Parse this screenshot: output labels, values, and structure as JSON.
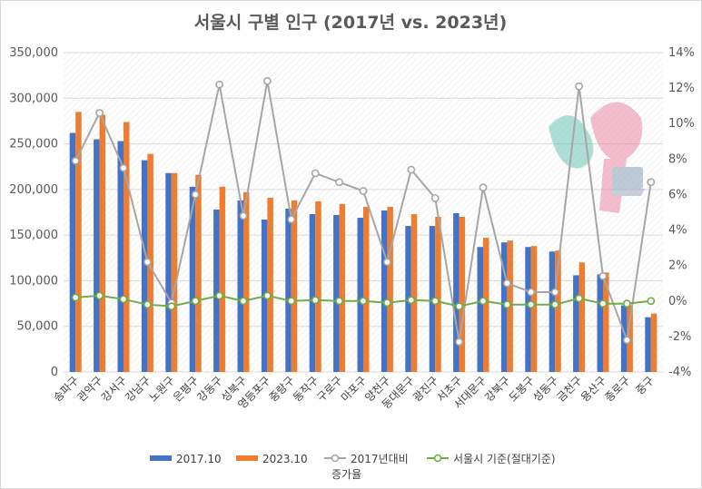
{
  "chart_data": {
    "type": "bar",
    "title": "서울시 구별 인구 (2017년 vs. 2023년)",
    "categories": [
      "송파구",
      "관악구",
      "강서구",
      "강남구",
      "노원구",
      "은평구",
      "강동구",
      "성북구",
      "영등포구",
      "중랑구",
      "동작구",
      "구로구",
      "마포구",
      "양천구",
      "동대문구",
      "광진구",
      "서초구",
      "서대문구",
      "강북구",
      "도봉구",
      "성동구",
      "금천구",
      "용산구",
      "종로구",
      "중구"
    ],
    "series": [
      {
        "name": "2017.10",
        "axis": "left",
        "kind": "bar",
        "color": "#4472c4",
        "values": [
          262000,
          255000,
          253000,
          232000,
          218000,
          203000,
          178000,
          188000,
          167000,
          179000,
          173000,
          172000,
          169000,
          177000,
          160000,
          160000,
          174000,
          137000,
          142000,
          137000,
          132000,
          106000,
          107000,
          73000,
          60000
        ]
      },
      {
        "name": "2023.10",
        "axis": "right_pct",
        "kind": "bar",
        "color": "#ed7d31",
        "values": [
          285000,
          282000,
          274000,
          239000,
          218000,
          216000,
          203000,
          197000,
          191000,
          188000,
          187000,
          184000,
          181000,
          181000,
          173000,
          170000,
          170000,
          147000,
          144000,
          138000,
          133000,
          120000,
          109000,
          73000,
          64000
        ]
      },
      {
        "name": "2017년대비 증가율",
        "axis": "right",
        "kind": "line",
        "color": "#a6a6a6",
        "values": [
          7.9,
          10.6,
          7.5,
          2.2,
          -0.1,
          6.0,
          12.2,
          4.8,
          12.4,
          4.6,
          7.2,
          6.7,
          6.2,
          2.2,
          7.4,
          5.8,
          -2.3,
          6.4,
          1.0,
          0.5,
          0.5,
          12.1,
          1.4,
          -2.2,
          6.7
        ]
      },
      {
        "name": "서울시 기준(절대기준)",
        "axis": "right",
        "kind": "line",
        "color": "#70ad47",
        "values": [
          0.2,
          0.3,
          0.1,
          -0.2,
          -0.3,
          0.0,
          0.3,
          0.0,
          0.3,
          0.0,
          0.05,
          0.0,
          0.0,
          -0.1,
          0.05,
          0.0,
          -0.3,
          0.0,
          -0.2,
          -0.2,
          -0.2,
          0.15,
          -0.15,
          -0.15,
          0.0
        ]
      }
    ],
    "left_axis": {
      "min": 0,
      "max": 350000,
      "step": 50000,
      "tick_labels": [
        "0",
        "50,000",
        "100,000",
        "150,000",
        "200,000",
        "250,000",
        "300,000",
        "350,000"
      ]
    },
    "right_axis": {
      "min": -4,
      "max": 14,
      "step": 2,
      "tick_labels": [
        "-4%",
        "-2%",
        "0%",
        "2%",
        "4%",
        "6%",
        "8%",
        "10%",
        "12%",
        "14%"
      ]
    },
    "legend": [
      {
        "label": "2017.10",
        "kind": "bar",
        "color": "#4472c4"
      },
      {
        "label": "2023.10",
        "kind": "bar",
        "color": "#ed7d31"
      },
      {
        "label": "2017년대비",
        "label_line2": "증가율",
        "kind": "line",
        "color": "#a6a6a6"
      },
      {
        "label": "서울시 기준(절대기준)",
        "kind": "line",
        "color": "#70ad47"
      }
    ],
    "legend_position": "bottom",
    "grid": true
  }
}
